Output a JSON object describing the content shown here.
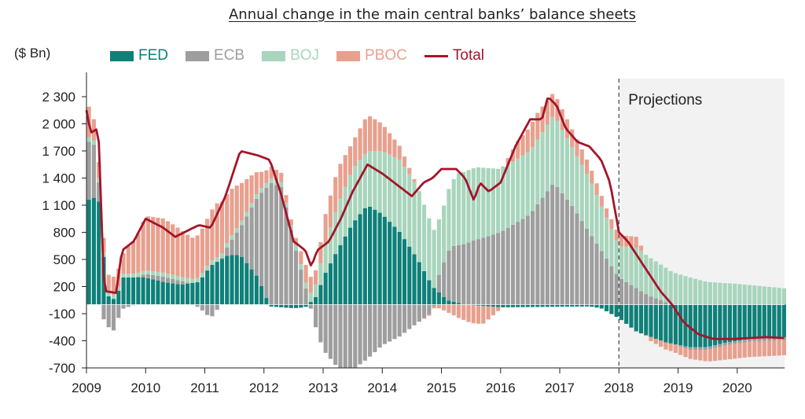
{
  "chart_data": {
    "type": "bar",
    "title": "Annual change in the main central banks’ balance sheets",
    "unit_label": "($ Bn)",
    "projection_label": "Projections",
    "projection_start": 2018,
    "ylim": [
      -700,
      2500
    ],
    "yticks": [
      2300,
      2000,
      1700,
      1400,
      1100,
      800,
      500,
      200,
      -100,
      -400,
      -700
    ],
    "ytick_labels": [
      "2 300",
      "2 000",
      "1 700",
      "1 400",
      "1 100",
      "800",
      "500",
      "200",
      "-100",
      "-400",
      "-700"
    ],
    "xlim": [
      2009,
      2020.8
    ],
    "xticks": [
      "2009",
      "2010",
      "2011",
      "2012",
      "2013",
      "2014",
      "2015",
      "2016",
      "2017",
      "2018",
      "2019",
      "2020"
    ],
    "colors": {
      "FED": "#0e8079",
      "ECB": "#9e9e9e",
      "BOJ": "#a8d5bc",
      "PBOC": "#e8a08e",
      "Total": "#a3152a",
      "projection_bg": "#f2f2f2"
    },
    "legend": [
      "FED",
      "ECB",
      "BOJ",
      "PBOC",
      "Total"
    ],
    "series": [
      {
        "name": "FED",
        "knots": [
          [
            2009,
            1150
          ],
          [
            2009.2,
            1200
          ],
          [
            2009.35,
            100
          ],
          [
            2009.5,
            50
          ],
          [
            2009.6,
            300
          ],
          [
            2010,
            300
          ],
          [
            2010.3,
            250
          ],
          [
            2010.6,
            220
          ],
          [
            2010.9,
            250
          ],
          [
            2011.1,
            430
          ],
          [
            2011.4,
            550
          ],
          [
            2011.6,
            550
          ],
          [
            2011.9,
            300
          ],
          [
            2012.1,
            -20
          ],
          [
            2012.5,
            -40
          ],
          [
            2012.7,
            -30
          ],
          [
            2012.9,
            100
          ],
          [
            2013.0,
            300
          ],
          [
            2013.2,
            550
          ],
          [
            2013.5,
            900
          ],
          [
            2013.75,
            1100
          ],
          [
            2014.0,
            1000
          ],
          [
            2014.3,
            800
          ],
          [
            2014.6,
            500
          ],
          [
            2014.85,
            200
          ],
          [
            2015.1,
            50
          ],
          [
            2015.4,
            0
          ],
          [
            2016,
            -30
          ],
          [
            2017.5,
            -20
          ],
          [
            2017.7,
            -40
          ],
          [
            2018,
            -150
          ],
          [
            2018.3,
            -300
          ],
          [
            2018.8,
            -420
          ],
          [
            2019.2,
            -470
          ],
          [
            2019.5,
            -470
          ],
          [
            2019.8,
            -420
          ],
          [
            2020.2,
            -380
          ],
          [
            2020.8,
            -360
          ]
        ]
      },
      {
        "name": "ECB",
        "knots": [
          [
            2009,
            600
          ],
          [
            2009.1,
            700
          ],
          [
            2009.3,
            -200
          ],
          [
            2009.45,
            -300
          ],
          [
            2009.6,
            -50
          ],
          [
            2010,
            40
          ],
          [
            2010.3,
            60
          ],
          [
            2010.6,
            40
          ],
          [
            2010.9,
            -30
          ],
          [
            2011.1,
            -150
          ],
          [
            2011.3,
            20
          ],
          [
            2011.6,
            300
          ],
          [
            2011.9,
            900
          ],
          [
            2012.1,
            1350
          ],
          [
            2012.3,
            1300
          ],
          [
            2012.5,
            700
          ],
          [
            2012.7,
            200
          ],
          [
            2012.85,
            -200
          ],
          [
            2013.0,
            -500
          ],
          [
            2013.25,
            -700
          ],
          [
            2013.5,
            -720
          ],
          [
            2013.75,
            -600
          ],
          [
            2014.0,
            -450
          ],
          [
            2014.3,
            -350
          ],
          [
            2014.6,
            -200
          ],
          [
            2014.85,
            -80
          ],
          [
            2015.0,
            300
          ],
          [
            2015.15,
            600
          ],
          [
            2015.5,
            700
          ],
          [
            2016,
            800
          ],
          [
            2016.5,
            1000
          ],
          [
            2016.9,
            1350
          ],
          [
            2017.2,
            1100
          ],
          [
            2017.5,
            800
          ],
          [
            2017.8,
            500
          ],
          [
            2018,
            300
          ],
          [
            2018.5,
            100
          ],
          [
            2018.9,
            0
          ],
          [
            2019.2,
            -30
          ],
          [
            2020.8,
            -30
          ]
        ]
      },
      {
        "name": "BOJ",
        "knots": [
          [
            2009,
            50
          ],
          [
            2010,
            40
          ],
          [
            2011,
            50
          ],
          [
            2012,
            50
          ],
          [
            2012.7,
            60
          ],
          [
            2012.9,
            150
          ],
          [
            2013.0,
            300
          ],
          [
            2013.25,
            500
          ],
          [
            2013.5,
            600
          ],
          [
            2013.75,
            600
          ],
          [
            2014.0,
            700
          ],
          [
            2014.3,
            800
          ],
          [
            2014.6,
            800
          ],
          [
            2014.85,
            650
          ],
          [
            2015.0,
            600
          ],
          [
            2015.3,
            800
          ],
          [
            2015.6,
            800
          ],
          [
            2016,
            700
          ],
          [
            2016.5,
            700
          ],
          [
            2016.9,
            750
          ],
          [
            2017.2,
            650
          ],
          [
            2017.5,
            600
          ],
          [
            2017.8,
            450
          ],
          [
            2018,
            350
          ],
          [
            2018.3,
            450
          ],
          [
            2018.5,
            430
          ],
          [
            2018.8,
            380
          ],
          [
            2019.2,
            300
          ],
          [
            2019.5,
            250
          ],
          [
            2020.0,
            230
          ],
          [
            2020.8,
            180
          ]
        ]
      },
      {
        "name": "PBOC",
        "knots": [
          [
            2009,
            400
          ],
          [
            2009.1,
            250
          ],
          [
            2009.25,
            150
          ],
          [
            2009.4,
            200
          ],
          [
            2009.5,
            200
          ],
          [
            2009.6,
            200
          ],
          [
            2009.7,
            300
          ],
          [
            2009.85,
            400
          ],
          [
            2010,
            600
          ],
          [
            2010.3,
            600
          ],
          [
            2010.5,
            550
          ],
          [
            2010.8,
            450
          ],
          [
            2011.0,
            500
          ],
          [
            2011.2,
            600
          ],
          [
            2011.5,
            500
          ],
          [
            2011.8,
            300
          ],
          [
            2012.0,
            150
          ],
          [
            2012.3,
            100
          ],
          [
            2012.5,
            50
          ],
          [
            2012.7,
            200
          ],
          [
            2012.9,
            150
          ],
          [
            2013.0,
            300
          ],
          [
            2013.25,
            400
          ],
          [
            2013.5,
            300
          ],
          [
            2013.75,
            400
          ],
          [
            2014.0,
            300
          ],
          [
            2014.3,
            150
          ],
          [
            2014.6,
            0
          ],
          [
            2014.85,
            -20
          ],
          [
            2015.0,
            -50
          ],
          [
            2015.3,
            -150
          ],
          [
            2015.5,
            -200
          ],
          [
            2015.7,
            -200
          ],
          [
            2016,
            -20
          ],
          [
            2016.3,
            200
          ],
          [
            2016.6,
            300
          ],
          [
            2016.9,
            250
          ],
          [
            2017.2,
            200
          ],
          [
            2017.5,
            150
          ],
          [
            2017.8,
            100
          ],
          [
            2018,
            120
          ],
          [
            2018.3,
            120
          ],
          [
            2018.5,
            -40
          ],
          [
            2018.8,
            -80
          ],
          [
            2019.2,
            -100
          ],
          [
            2019.5,
            -130
          ],
          [
            2019.8,
            -160
          ],
          [
            2020.2,
            -170
          ],
          [
            2020.8,
            -170
          ]
        ]
      },
      {
        "name": "Total",
        "knots": [
          [
            2009,
            2150
          ],
          [
            2009.07,
            1900
          ],
          [
            2009.2,
            1950
          ],
          [
            2009.3,
            150
          ],
          [
            2009.5,
            130
          ],
          [
            2009.6,
            600
          ],
          [
            2009.8,
            700
          ],
          [
            2010,
            950
          ],
          [
            2010.3,
            850
          ],
          [
            2010.5,
            750
          ],
          [
            2010.9,
            880
          ],
          [
            2011.1,
            850
          ],
          [
            2011.35,
            1200
          ],
          [
            2011.6,
            1700
          ],
          [
            2011.9,
            1650
          ],
          [
            2012.1,
            1600
          ],
          [
            2012.3,
            1200
          ],
          [
            2012.5,
            700
          ],
          [
            2012.7,
            600
          ],
          [
            2012.8,
            420
          ],
          [
            2012.9,
            600
          ],
          [
            2013.1,
            700
          ],
          [
            2013.3,
            950
          ],
          [
            2013.5,
            1250
          ],
          [
            2013.75,
            1550
          ],
          [
            2014.0,
            1450
          ],
          [
            2014.3,
            1300
          ],
          [
            2014.5,
            1200
          ],
          [
            2014.7,
            1350
          ],
          [
            2014.85,
            1400
          ],
          [
            2015.0,
            1500
          ],
          [
            2015.25,
            1500
          ],
          [
            2015.4,
            1400
          ],
          [
            2015.55,
            1150
          ],
          [
            2015.65,
            1350
          ],
          [
            2015.8,
            1250
          ],
          [
            2016.0,
            1350
          ],
          [
            2016.25,
            1750
          ],
          [
            2016.5,
            2050
          ],
          [
            2016.7,
            2050
          ],
          [
            2016.8,
            2300
          ],
          [
            2016.95,
            2200
          ],
          [
            2017.1,
            1950
          ],
          [
            2017.3,
            1800
          ],
          [
            2017.5,
            1750
          ],
          [
            2017.7,
            1600
          ],
          [
            2017.85,
            1350
          ],
          [
            2018.0,
            800
          ],
          [
            2018.15,
            700
          ],
          [
            2018.4,
            450
          ],
          [
            2018.7,
            150
          ],
          [
            2018.9,
            0
          ],
          [
            2019.1,
            -200
          ],
          [
            2019.35,
            -330
          ],
          [
            2019.6,
            -380
          ],
          [
            2019.9,
            -380
          ],
          [
            2020.2,
            -370
          ],
          [
            2020.5,
            -360
          ],
          [
            2020.8,
            -370
          ]
        ]
      }
    ]
  }
}
